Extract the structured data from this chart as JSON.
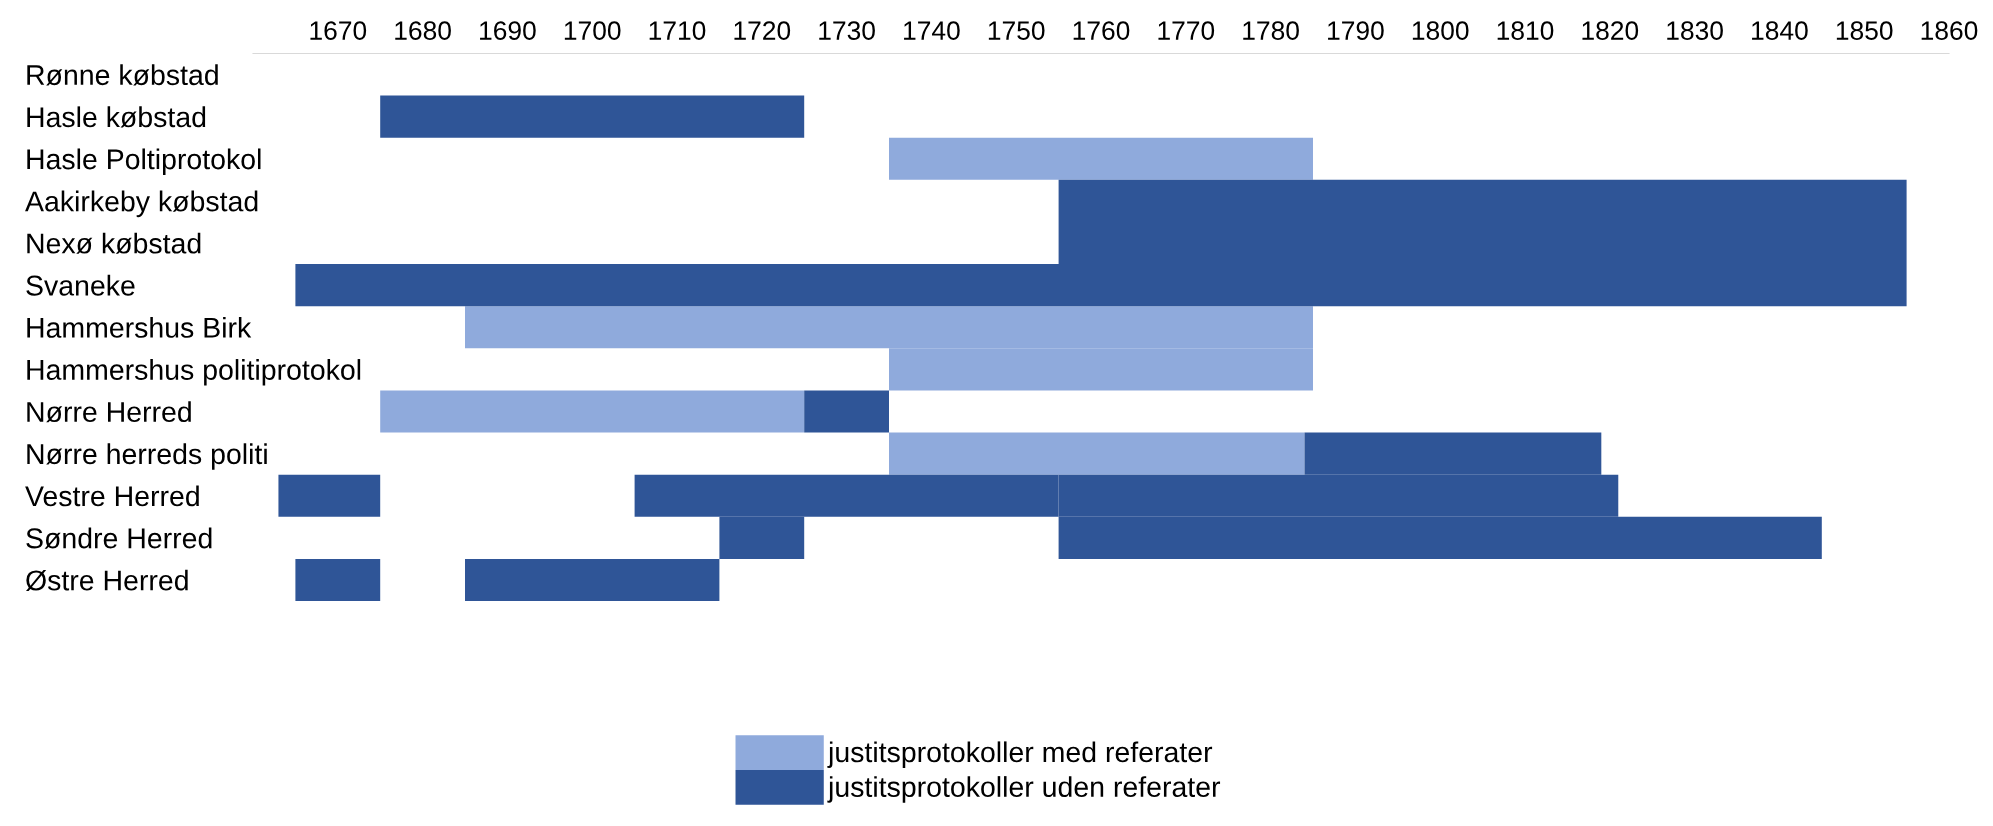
{
  "chart_data": {
    "type": "bar",
    "orientation": "horizontal",
    "categories": [
      "Rønne købstad",
      "Hasle købstad",
      "Hasle Poltiprotokol",
      "Aakirkeby købstad",
      "Nexø købstad",
      "Svaneke",
      "Hammershus Birk",
      "Hammershus politiprotokol",
      "Nørre Herred",
      "Nørre herreds politi",
      "Vestre Herred",
      "Søndre Herred",
      "Østre Herred"
    ],
    "series": [
      {
        "name": "justitsprotokoller med referater",
        "color": "#8faadc",
        "base": [
          null,
          null,
          1735,
          null,
          null,
          null,
          1685,
          1735,
          1675,
          1735,
          null,
          null,
          null
        ],
        "values": [
          null,
          null,
          50,
          null,
          null,
          null,
          100,
          50,
          50,
          49,
          null,
          null,
          null
        ]
      },
      {
        "name": "justitsprotokoller uden referater",
        "color": "#2f5597",
        "base": [
          null,
          1675,
          null,
          1755,
          1755,
          1665,
          null,
          null,
          1725,
          1784,
          1663,
          1715,
          1665
        ],
        "values": [
          null,
          50,
          null,
          100,
          100,
          190,
          null,
          null,
          10,
          35,
          12,
          10,
          10
        ]
      },
      {
        "color": "#2f5597",
        "base": [
          null,
          null,
          null,
          null,
          null,
          null,
          null,
          null,
          null,
          null,
          1705,
          1755,
          1685
        ],
        "values": [
          null,
          null,
          null,
          null,
          null,
          null,
          null,
          null,
          null,
          null,
          50,
          90,
          30
        ]
      },
      {
        "color": "#2f5597",
        "base": [
          null,
          null,
          null,
          null,
          null,
          null,
          null,
          null,
          null,
          null,
          1755,
          null,
          null
        ],
        "values": [
          null,
          null,
          null,
          null,
          null,
          null,
          null,
          null,
          null,
          null,
          66,
          null,
          null
        ]
      }
    ],
    "xlim": [
      1660,
      1860
    ],
    "xticks": [
      1670,
      1680,
      1690,
      1700,
      1710,
      1720,
      1730,
      1740,
      1750,
      1760,
      1770,
      1780,
      1790,
      1800,
      1810,
      1820,
      1830,
      1840,
      1850,
      1860
    ],
    "grid": false,
    "legend": "bottom"
  }
}
